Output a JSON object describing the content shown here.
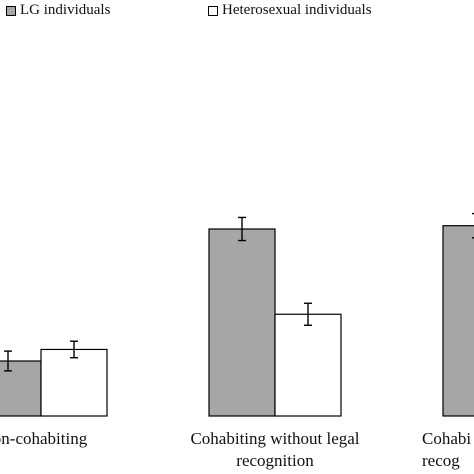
{
  "chart_data": {
    "type": "bar",
    "categories": [
      "Non-cohabiting",
      "Cohabiting without legal recognition",
      "Cohabiting with legal recognition"
    ],
    "category_labels_visible": [
      [
        "on-cohabiting"
      ],
      [
        "Cohabiting without legal",
        "recognition"
      ],
      [
        "Cohabi",
        "recog"
      ]
    ],
    "series": [
      {
        "name": "LG individuals",
        "color": "#a6a6a6",
        "values": [
          1.0,
          3.4,
          3.46
        ],
        "errors": [
          0.18,
          0.21,
          0.22
        ]
      },
      {
        "name": "Heterosexual individuals",
        "color": "#ffffff",
        "values": [
          1.21,
          1.85,
          null
        ],
        "errors": [
          0.15,
          0.2,
          null
        ]
      }
    ],
    "ylim": [
      0,
      5.2
    ],
    "grid": false,
    "legend": "top",
    "title": "",
    "xlabel": "",
    "ylabel": ""
  }
}
